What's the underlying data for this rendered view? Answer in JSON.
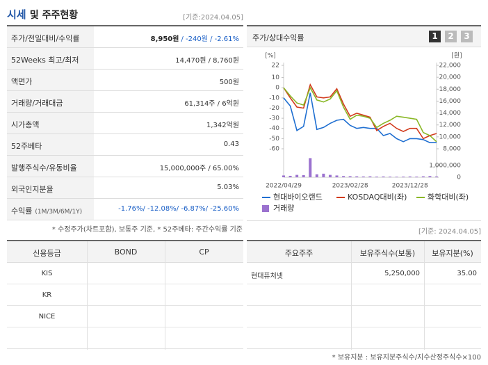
{
  "header": {
    "title_main": "시세",
    "title_rest": "및 주주현황",
    "date": "[기준:2024.04.05]"
  },
  "price_table": {
    "rows": [
      {
        "label": "주가/전일대비/수익률",
        "value": "8,950원",
        "change": "/ -240원 / -2.61%"
      },
      {
        "label": "52Weeks 최고/최저",
        "value": "14,470원 / 8,760원"
      },
      {
        "label": "액면가",
        "value": "500원"
      },
      {
        "label": "거래량/거래대금",
        "value": "61,314주 / 6억원"
      },
      {
        "label": "시가총액",
        "value": "1,342억원"
      },
      {
        "label": "52주베타",
        "value": "0.43"
      },
      {
        "label": "발행주식수/유동비율",
        "value": "15,000,000주 / 65.00%"
      },
      {
        "label": "외국인지분율",
        "value": "5.03%"
      },
      {
        "label": "수익률",
        "sub": "(1M/3M/6M/1Y)",
        "change": "-1.76%/ -12.08%/ -6.87%/ -25.60%"
      }
    ]
  },
  "price_note": "* 수정주가(차트포함), 보통주 기준, * 52주베타: 주간수익률 기준",
  "chart_buttons": [
    "1",
    "2",
    "3"
  ],
  "chart_data": {
    "type": "line",
    "title": "주가/상대수익률",
    "ylabel": "[%]",
    "y2label": "[원]",
    "categories": [
      "2022/04/29",
      null,
      null,
      null,
      null,
      null,
      null,
      null,
      null,
      null,
      "2023/02/28",
      null,
      null,
      null,
      null,
      null,
      null,
      null,
      null,
      "2023/12/28",
      null,
      null,
      null,
      null
    ],
    "ylim": [
      -60,
      22
    ],
    "yticks": [
      22,
      10,
      0,
      -10,
      -20,
      -30,
      -40,
      -50,
      -60
    ],
    "y2lim": [
      8000,
      22000
    ],
    "y2ticks": [
      {
        "value": 22000,
        "label": "22,000"
      },
      {
        "value": 20000,
        "label": "20,000"
      },
      {
        "value": 18000,
        "label": "18,000"
      },
      {
        "value": 16000,
        "label": "16,000"
      },
      {
        "value": 14000,
        "label": "14,000"
      },
      {
        "value": 12000,
        "label": "12,000"
      },
      {
        "value": 10000,
        "label": "10,000"
      },
      {
        "value": 8000,
        "label": "8,000"
      }
    ],
    "volume_lim": [
      0,
      1800000
    ],
    "volume_ticks": [
      {
        "value": 1000000,
        "label": "1,000,000"
      },
      0
    ],
    "series": [
      {
        "name": "현대바이오랜드",
        "color": "#1f6fd1",
        "values": [
          -10,
          -18,
          -42,
          -38,
          -5,
          -41,
          -39,
          -35,
          -32,
          -31,
          -37,
          -40,
          -39,
          -40,
          -40,
          -47,
          -45,
          -50,
          -53,
          -50,
          -50,
          -51,
          -54,
          -54
        ]
      },
      {
        "name": "KOSDAQ대비(좌)",
        "color": "#d23a1c",
        "values": [
          0,
          -10,
          -19,
          -20,
          3,
          -9,
          -10,
          -9,
          -1,
          -16,
          -28,
          -25,
          -27,
          -29,
          -42,
          -38,
          -35,
          -40,
          -43,
          -40,
          -40,
          -50,
          -47,
          -45
        ]
      },
      {
        "name": "화학대비(좌)",
        "color": "#8ab827",
        "values": [
          0,
          -8,
          -15,
          -17,
          0,
          -12,
          -14,
          -11,
          -3,
          -19,
          -31,
          -27,
          -28,
          -30,
          -39,
          -35,
          -32,
          -28,
          -29,
          -30,
          -31,
          -44,
          -47,
          -53
        ]
      },
      {
        "name": "거래량",
        "color": "#9b72cf",
        "axis": "volume",
        "values": [
          150000,
          120000,
          200000,
          180000,
          1600000,
          250000,
          300000,
          200000,
          150000,
          100000,
          90000,
          80000,
          70000,
          80000,
          60000,
          70000,
          60000,
          50000,
          60000,
          70000,
          60000,
          80000,
          100000,
          70000
        ]
      }
    ]
  },
  "credit_table": {
    "headers": [
      "신용등급",
      "BOND",
      "CP"
    ],
    "agencies": [
      "KIS",
      "KR",
      "NICE"
    ]
  },
  "holders_date": "[기준: 2024.04.05]",
  "holders_table": {
    "headers": [
      "주요주주",
      "보유주식수(보통)",
      "보유지분(%)"
    ],
    "rows": [
      [
        "현대퓨처넷",
        "5,250,000",
        "35.00"
      ]
    ]
  },
  "holders_note": "* 보유지분 : 보유지분주식수/지수산정주식수×100"
}
